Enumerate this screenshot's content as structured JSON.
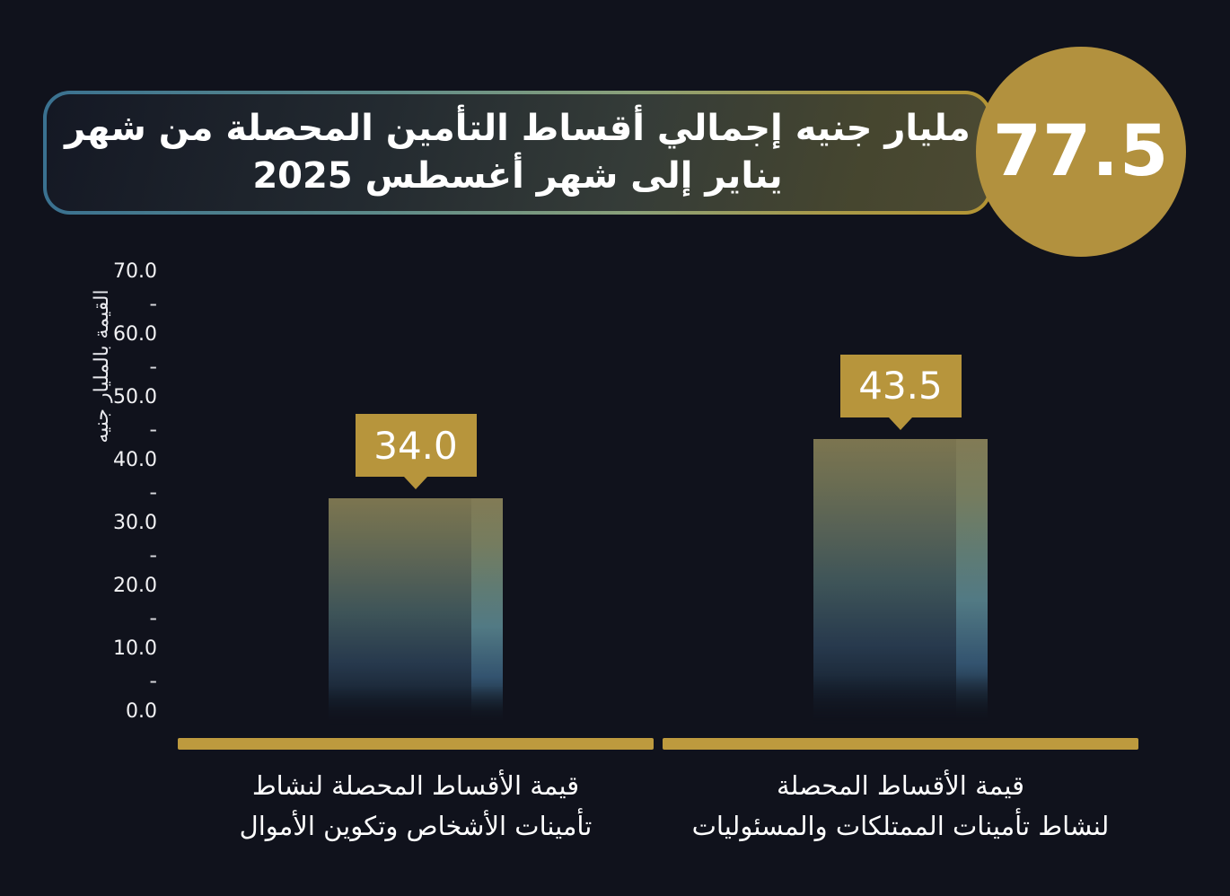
{
  "header": {
    "title": "مليار جنيه إجمالي أقساط التأمين المحصلة من شهر\nيناير إلى شهر أغسطس 2025",
    "badge_value": "77.5"
  },
  "colors": {
    "background": "#10121c",
    "gold_badge": "#b2913e",
    "gold_callout": "#b7953c",
    "gold_baseline": "#bd9a3e",
    "border_teal": "#3a7190",
    "border_gold": "#b39433",
    "text": "#ffffff"
  },
  "chart_data": {
    "type": "bar",
    "title": "مليار جنيه إجمالي أقساط التأمين المحصلة من شهر يناير إلى شهر أغسطس 2025",
    "total": 77.5,
    "ylabel": "القيمة بالمليار جنيه",
    "xlabel": "",
    "categories": [
      "قيمة الأقساط المحصلة لنشاط\nتأمينات الأشخاص وتكوين الأموال",
      "قيمة الأقساط المحصلة\nلنشاط تأمينات الممتلكات والمسئوليات"
    ],
    "values": [
      34.0,
      43.5
    ],
    "ylim": [
      0,
      70
    ],
    "ytick_step": 10,
    "minor_ticks": true,
    "grid": false,
    "legend": false,
    "bar_color_top": "#7c7550",
    "bar_color_bottom": "#11141f"
  }
}
